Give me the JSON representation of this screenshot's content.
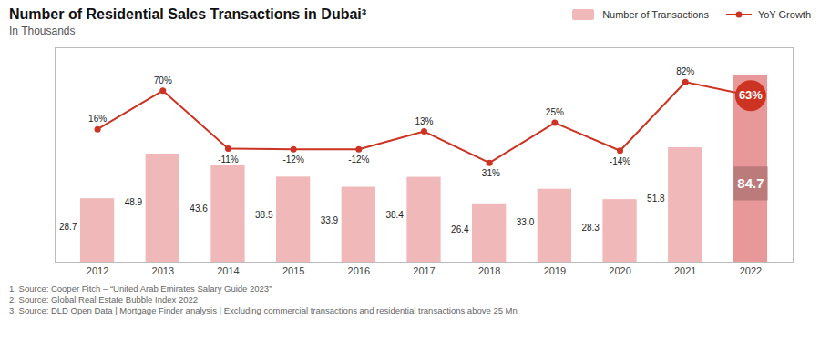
{
  "chart_data": {
    "type": "bar",
    "title": "Number of Residential Sales Transactions in Dubai³",
    "subtitle": "In Thousands",
    "categories": [
      "2012",
      "2013",
      "2014",
      "2015",
      "2016",
      "2017",
      "2018",
      "2019",
      "2020",
      "2021",
      "2022"
    ],
    "series": [
      {
        "name": "Number of Transactions",
        "type": "bar",
        "colors": [
          "#f0b8b8",
          "#f0b8b8",
          "#f0b8b8",
          "#f0b8b8",
          "#f0b8b8",
          "#f0b8b8",
          "#f0b8b8",
          "#f0b8b8",
          "#f0b8b8",
          "#f0b8b8",
          "#e89898"
        ],
        "values": [
          28.7,
          48.9,
          43.6,
          38.5,
          33.9,
          38.4,
          26.4,
          33.0,
          28.3,
          51.8,
          84.7
        ],
        "value_labels": [
          "28.7",
          "48.9",
          "43.6",
          "38.5",
          "33.9",
          "38.4",
          "26.4",
          "33.0",
          "28.3",
          "51.8",
          "84.7"
        ]
      },
      {
        "name": "YoY Growth",
        "type": "line",
        "axis": "y2",
        "color": "#cc3322",
        "marker": "circle",
        "values": [
          16,
          70,
          -11,
          -12,
          -12,
          13,
          -31,
          25,
          -14,
          82,
          63
        ],
        "value_labels": [
          "16%",
          "70%",
          "-11%",
          "-12%",
          "-12%",
          "13%",
          "-31%",
          "25%",
          "-14%",
          "82%",
          "63%"
        ]
      }
    ],
    "ylim": [
      0,
      97
    ],
    "y2lim": [
      -170,
      130
    ],
    "tick_labels": "x",
    "data_labels": true,
    "grid": false,
    "legend": "upper right",
    "annotations": [
      "1. Source: Cooper Fitch – “United Arab Emirates Salary Guide 2023”",
      "2. Source: Global Real Estate Bubble Index 2022",
      "3. Source: DLD Open Data | Mortgage Finder analysis | Excluding commercial transactions and residential transactions above 25 Mn"
    ]
  }
}
